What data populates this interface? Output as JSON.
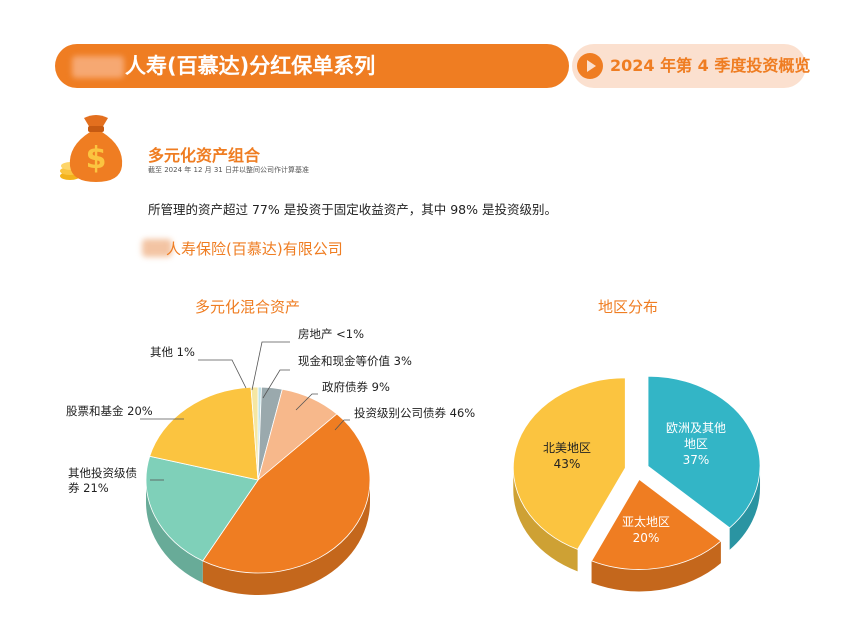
{
  "header": {
    "title": "人寿(百慕达)分红保单系列",
    "period": "2024 年第 4 季度投资概览"
  },
  "section": {
    "title": "多元化资产组合",
    "as_of": "截至 2024 年 12 月 31 日并以整间公司作计算基准",
    "statement": "所管理的资产超过 77% 是投资于固定收益资产，其中 98% 是投资级别。",
    "company": "人寿保险(百慕达)有限公司"
  },
  "icons": {
    "money_bag": "money-bag-icon",
    "play": "play-arrow-icon"
  },
  "colors": {
    "accent": "#ef7d22",
    "pill_bg": "#fbe0cf",
    "teal": "#33b5c6",
    "yellow": "#fbc440",
    "light_orange": "#f7b88b",
    "green": "#7fd0b9"
  },
  "chart_data": [
    {
      "type": "pie",
      "title": "多元化混合资产",
      "series": [
        {
          "label": "房地产 <1%",
          "value": 0.5,
          "color": "#bfe2e6"
        },
        {
          "label": "现金和现金等价值 3%",
          "value": 3,
          "color": "#9aa9ad"
        },
        {
          "label": "政府债券 9%",
          "value": 9,
          "color": "#f7b88b"
        },
        {
          "label": "投资级别公司债券 46%",
          "value": 46,
          "color": "#ef7d22"
        },
        {
          "label": "其他投资级债券 21%",
          "value": 21,
          "color": "#7fd0b9"
        },
        {
          "label": "股票和基金 20%",
          "value": 20,
          "color": "#fbc440"
        },
        {
          "label": "其他 1%",
          "value": 1,
          "color": "#f5e7a3"
        }
      ]
    },
    {
      "type": "pie",
      "title": "地区分布",
      "series": [
        {
          "label": "欧洲及其他地区",
          "pct": "37%",
          "value": 37,
          "color": "#33b5c6"
        },
        {
          "label": "亚太地区",
          "pct": "20%",
          "value": 20,
          "color": "#ef7d22"
        },
        {
          "label": "北美地区",
          "pct": "43%",
          "value": 43,
          "color": "#fbc440"
        }
      ]
    }
  ]
}
